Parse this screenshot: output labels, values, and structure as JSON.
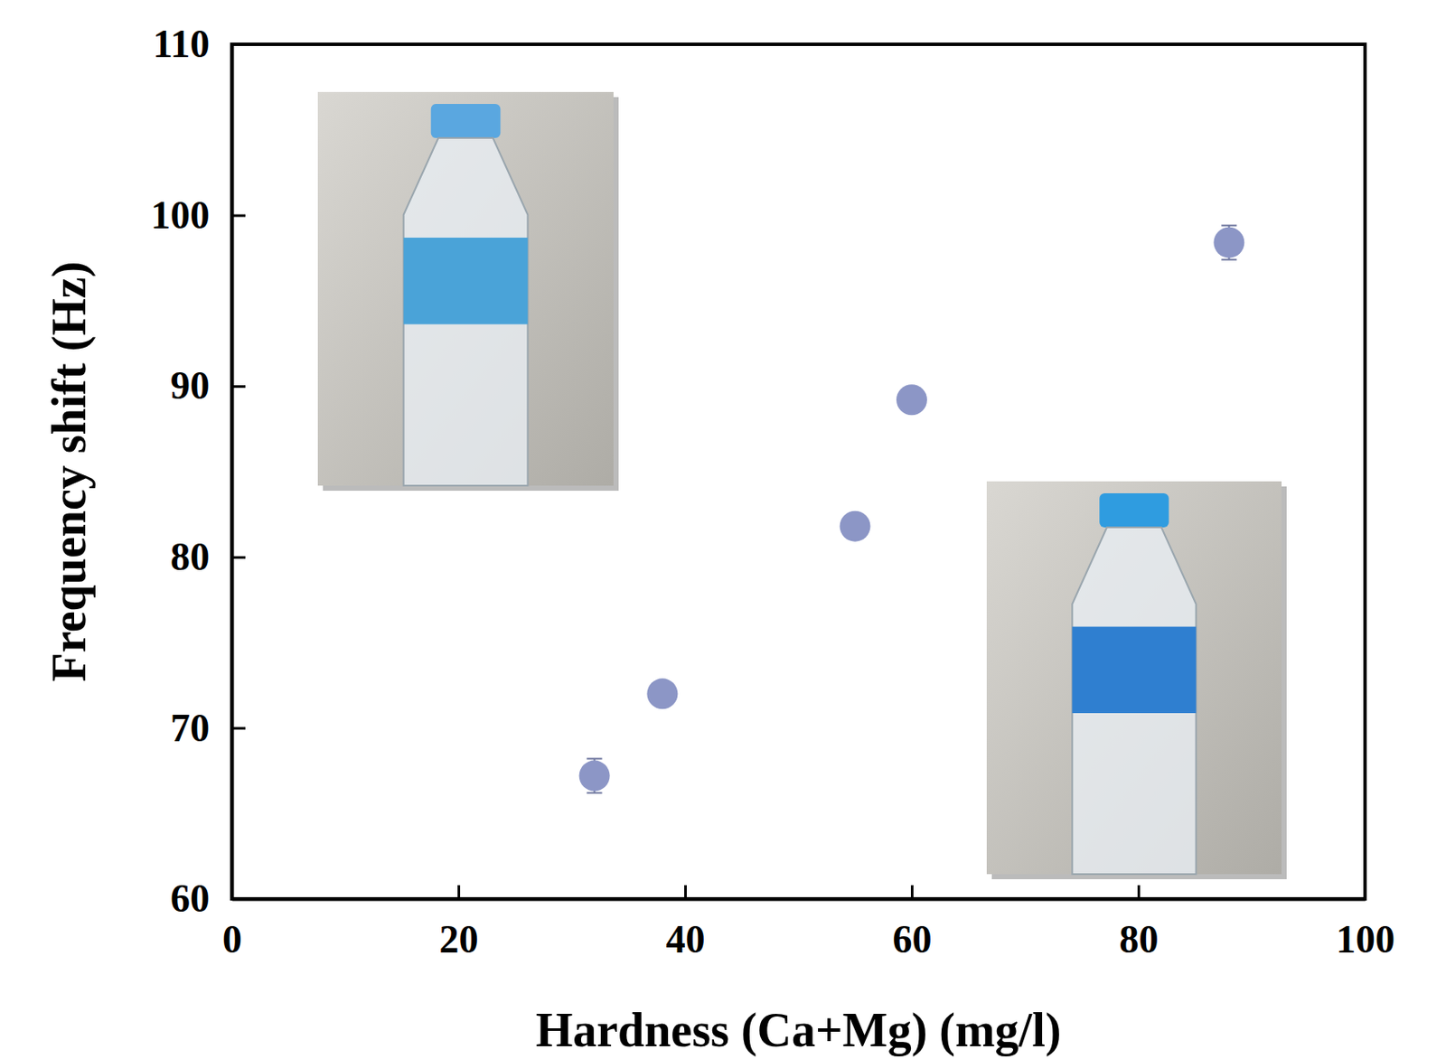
{
  "chart_data": {
    "type": "scatter",
    "x_label": "Hardness (Ca+Mg) (mg/l)",
    "y_label": "Frequency shift (Hz)",
    "x": [
      32,
      38,
      55,
      60,
      88
    ],
    "values": [
      67.2,
      72.0,
      81.8,
      89.2,
      98.4
    ],
    "errors": [
      1.0,
      0.3,
      0.3,
      0.3,
      1.0
    ],
    "color": "#8c96c6",
    "marker": "circle",
    "xlim": [
      0,
      100
    ],
    "xticks": [
      0,
      20,
      40,
      60,
      80,
      100
    ],
    "ylim": [
      60,
      110
    ],
    "yticks": [
      60,
      70,
      80,
      90,
      100,
      110
    ],
    "grid": false
  }
}
